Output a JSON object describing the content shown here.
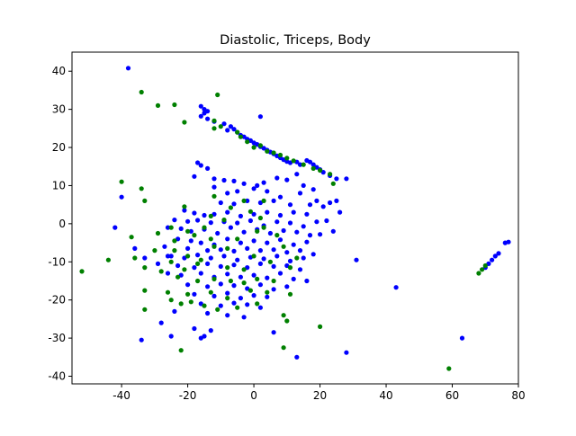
{
  "chart_data": {
    "type": "scatter",
    "title": "Diastolic, Triceps, Body",
    "xlabel": "",
    "ylabel": "",
    "xlim": [
      -55,
      80
    ],
    "ylim": [
      -42,
      45
    ],
    "xticks": [
      -40,
      -20,
      0,
      20,
      40,
      60,
      80
    ],
    "yticks": [
      -40,
      -30,
      -20,
      -10,
      0,
      10,
      20,
      30,
      40
    ],
    "grid": false,
    "legend": "none",
    "series": [
      {
        "color": "#0000ff",
        "points": [
          [
            -38,
            40.8
          ],
          [
            -16,
            30.8
          ],
          [
            -15,
            30
          ],
          [
            -14,
            29.5
          ],
          [
            -15,
            29
          ],
          [
            -16,
            28.2
          ],
          [
            -14,
            27.5
          ],
          [
            -12,
            26.8
          ],
          [
            -9,
            26.2
          ],
          [
            -7,
            25.5
          ],
          [
            -6,
            24.8
          ],
          [
            -8,
            24.5
          ],
          [
            -5,
            24
          ],
          [
            -4,
            23.2
          ],
          [
            -3,
            22.8
          ],
          [
            -2,
            22.2
          ],
          [
            -1,
            21.8
          ],
          [
            0,
            21.2
          ],
          [
            1,
            20.8
          ],
          [
            2,
            20.2
          ],
          [
            3,
            19.8
          ],
          [
            4,
            19.3
          ],
          [
            5,
            18.8
          ],
          [
            6,
            18.3
          ],
          [
            7,
            17.8
          ],
          [
            8,
            17.3
          ],
          [
            9,
            16.8
          ],
          [
            10,
            16.3
          ],
          [
            11,
            16
          ],
          [
            13,
            16.2
          ],
          [
            14,
            15.5
          ],
          [
            16,
            16.6
          ],
          [
            17,
            16.2
          ],
          [
            18,
            15.5
          ],
          [
            19,
            14.8
          ],
          [
            20,
            14.2
          ],
          [
            21,
            13.5
          ],
          [
            23,
            12.6
          ],
          [
            25,
            11.8
          ],
          [
            28,
            11.8
          ],
          [
            2,
            28.1
          ],
          [
            -17,
            16
          ],
          [
            -16,
            15.3
          ],
          [
            -14,
            14.5
          ],
          [
            -18,
            12.4
          ],
          [
            -12,
            11.8
          ],
          [
            -9,
            11.4
          ],
          [
            -6,
            11.2
          ],
          [
            -3,
            10.5
          ],
          [
            1,
            10
          ],
          [
            3,
            10.8
          ],
          [
            7,
            12
          ],
          [
            10,
            11.5
          ],
          [
            13,
            13
          ],
          [
            15,
            10
          ],
          [
            18,
            9
          ],
          [
            -12,
            9.6
          ],
          [
            -8,
            8
          ],
          [
            -5,
            8.5
          ],
          [
            0,
            9.2
          ],
          [
            4,
            8.5
          ],
          [
            8,
            7
          ],
          [
            14,
            8
          ],
          [
            19,
            6
          ],
          [
            23,
            5.5
          ],
          [
            25,
            6
          ],
          [
            -10,
            5.5
          ],
          [
            -6,
            5.2
          ],
          [
            -2,
            6
          ],
          [
            2,
            5.5
          ],
          [
            6,
            6
          ],
          [
            11,
            5
          ],
          [
            17,
            5
          ],
          [
            21,
            4.5
          ],
          [
            26,
            3
          ],
          [
            -21,
            3.5
          ],
          [
            -18,
            2.8
          ],
          [
            -15,
            2.2
          ],
          [
            -12,
            2.5
          ],
          [
            -8,
            3
          ],
          [
            -4,
            2
          ],
          [
            0,
            2.5
          ],
          [
            4,
            3
          ],
          [
            8,
            2.2
          ],
          [
            12,
            3
          ],
          [
            16,
            2.5
          ],
          [
            19,
            0.5
          ],
          [
            22,
            0.8
          ],
          [
            -24,
            1
          ],
          [
            -20,
            0.6
          ],
          [
            -17,
            0.9
          ],
          [
            -13,
            0.3
          ],
          [
            -9,
            0.5
          ],
          [
            -5,
            0.2
          ],
          [
            -1,
            0.8
          ],
          [
            3,
            -0.5
          ],
          [
            7,
            0.5
          ],
          [
            11,
            0.2
          ],
          [
            15,
            -0.7
          ],
          [
            -26,
            -1
          ],
          [
            -22,
            -1.3
          ],
          [
            -19,
            -2
          ],
          [
            -15,
            -1.5
          ],
          [
            -11,
            -2.5
          ],
          [
            -7,
            -1
          ],
          [
            -3,
            -2.2
          ],
          [
            1,
            -1.5
          ],
          [
            5,
            -2.5
          ],
          [
            9,
            -1.8
          ],
          [
            13,
            -2.2
          ],
          [
            17,
            -3
          ],
          [
            20,
            -2.8
          ],
          [
            24,
            -2
          ],
          [
            -23,
            -4
          ],
          [
            -19,
            -4.5
          ],
          [
            -16,
            -5
          ],
          [
            -12,
            -5.5
          ],
          [
            -8,
            -4
          ],
          [
            -4,
            -5
          ],
          [
            0,
            -4.5
          ],
          [
            4,
            -5
          ],
          [
            8,
            -4.2
          ],
          [
            12,
            -5.5
          ],
          [
            16,
            -4.8
          ],
          [
            -27,
            -6
          ],
          [
            -20,
            -6.5
          ],
          [
            -14,
            -7
          ],
          [
            -10,
            -6.8
          ],
          [
            -6,
            -7.2
          ],
          [
            -2,
            -6.5
          ],
          [
            2,
            -7
          ],
          [
            6,
            -6.8
          ],
          [
            10,
            -7.5
          ],
          [
            14,
            -7
          ],
          [
            18,
            -8
          ],
          [
            -25,
            -8.5
          ],
          [
            -21,
            -9
          ],
          [
            -17,
            -8.2
          ],
          [
            -13,
            -9
          ],
          [
            -9,
            -8.5
          ],
          [
            -5,
            -9.5
          ],
          [
            -1,
            -8.8
          ],
          [
            3,
            -9.2
          ],
          [
            7,
            -8.5
          ],
          [
            11,
            -9.8
          ],
          [
            15,
            -9
          ],
          [
            -29,
            -10.5
          ],
          [
            -23,
            -11
          ],
          [
            -18,
            -11.5
          ],
          [
            -14,
            -10.5
          ],
          [
            -10,
            -11.2
          ],
          [
            -6,
            -10.8
          ],
          [
            -2,
            -11.5
          ],
          [
            2,
            -10.5
          ],
          [
            6,
            -11.2
          ],
          [
            10,
            -11
          ],
          [
            14,
            -12
          ],
          [
            -26,
            -13
          ],
          [
            -22,
            -13.5
          ],
          [
            -16,
            -13
          ],
          [
            -12,
            -14
          ],
          [
            -8,
            -13.2
          ],
          [
            -4,
            -14
          ],
          [
            0,
            -13.5
          ],
          [
            4,
            -14.2
          ],
          [
            8,
            -13
          ],
          [
            12,
            -14.5
          ],
          [
            16,
            -15
          ],
          [
            -20,
            -16
          ],
          [
            -14,
            -16.5
          ],
          [
            -10,
            -15.8
          ],
          [
            -6,
            -16.2
          ],
          [
            -2,
            -17
          ],
          [
            2,
            -16
          ],
          [
            6,
            -17.2
          ],
          [
            10,
            -16.5
          ],
          [
            -18,
            -18.5
          ],
          [
            -12,
            -19
          ],
          [
            -8,
            -18.2
          ],
          [
            -4,
            -19.5
          ],
          [
            0,
            -18.8
          ],
          [
            4,
            -19.2
          ],
          [
            -16,
            -21
          ],
          [
            -10,
            -21.5
          ],
          [
            -6,
            -20.8
          ],
          [
            -2,
            -21.2
          ],
          [
            2,
            -22
          ],
          [
            -14,
            -23.5
          ],
          [
            -8,
            -24
          ],
          [
            -3,
            -24.5
          ],
          [
            -24,
            -23
          ],
          [
            -28,
            -26
          ],
          [
            -18,
            -27.5
          ],
          [
            -13,
            -28
          ],
          [
            -25,
            -29.5
          ],
          [
            -16,
            -30
          ],
          [
            -15,
            -29.5
          ],
          [
            -34,
            -30.5
          ],
          [
            6,
            -28.5
          ],
          [
            13,
            -35
          ],
          [
            28,
            -33.8
          ],
          [
            -40,
            7
          ],
          [
            -42,
            -1
          ],
          [
            -36,
            -6.5
          ],
          [
            -33,
            -9
          ],
          [
            -26,
            -8.5
          ],
          [
            31,
            -9.5
          ],
          [
            43,
            -16.7
          ],
          [
            63,
            -30
          ],
          [
            70,
            -11.5
          ],
          [
            71,
            -10.5
          ],
          [
            72,
            -9.5
          ],
          [
            73,
            -8.5
          ],
          [
            74,
            -7.8
          ],
          [
            76,
            -5
          ],
          [
            77,
            -4.8
          ]
        ]
      },
      {
        "color": "#008000",
        "points": [
          [
            -34,
            34.5
          ],
          [
            -24,
            31.2
          ],
          [
            -29,
            31
          ],
          [
            -21,
            26.6
          ],
          [
            -11,
            33.8
          ],
          [
            -12,
            27
          ],
          [
            -12,
            25
          ],
          [
            -10,
            25.5
          ],
          [
            -5,
            24
          ],
          [
            -4,
            22.8
          ],
          [
            -2,
            21.5
          ],
          [
            0,
            20
          ],
          [
            2,
            20.5
          ],
          [
            4,
            19
          ],
          [
            6,
            18.6
          ],
          [
            8,
            18
          ],
          [
            10,
            17.2
          ],
          [
            12,
            16.5
          ],
          [
            15,
            15.5
          ],
          [
            18,
            14.5
          ],
          [
            20,
            14
          ],
          [
            23,
            13
          ],
          [
            24,
            10.5
          ],
          [
            -40,
            11
          ],
          [
            -34,
            9.2
          ],
          [
            -33,
            6
          ],
          [
            -12,
            7.2
          ],
          [
            -3,
            6
          ],
          [
            3,
            6
          ],
          [
            -21,
            4.5
          ],
          [
            -7,
            4.2
          ],
          [
            -1,
            3.2
          ],
          [
            2,
            1.5
          ],
          [
            -13,
            2
          ],
          [
            -9,
            1
          ],
          [
            3,
            -1
          ],
          [
            -25,
            -1
          ],
          [
            -20,
            -2
          ],
          [
            -15,
            -1
          ],
          [
            1,
            -2
          ],
          [
            -29,
            -2.5
          ],
          [
            -24,
            -4.5
          ],
          [
            -18,
            -3
          ],
          [
            -13,
            -4
          ],
          [
            -5,
            -4
          ],
          [
            7,
            -3
          ],
          [
            -12,
            -6
          ],
          [
            -8,
            -6.5
          ],
          [
            9,
            -6
          ],
          [
            -20,
            -8.5
          ],
          [
            -16,
            -9.5
          ],
          [
            0,
            -8.5
          ],
          [
            -24,
            -7
          ],
          [
            -30,
            -7
          ],
          [
            13,
            -9
          ],
          [
            -37,
            -3.5
          ],
          [
            -36,
            -9
          ],
          [
            -44,
            -9.5
          ],
          [
            -52,
            -12.5
          ],
          [
            -33,
            -11.5
          ],
          [
            -25,
            -10
          ],
          [
            -21,
            -12
          ],
          [
            -17,
            -10.5
          ],
          [
            5,
            -10
          ],
          [
            -8,
            -11.5
          ],
          [
            -3,
            -12
          ],
          [
            11,
            -11.5
          ],
          [
            -28,
            -12.5
          ],
          [
            -23,
            -14
          ],
          [
            -17,
            -15
          ],
          [
            -12,
            -14.5
          ],
          [
            -7,
            -15
          ],
          [
            -3,
            -15.5
          ],
          [
            1,
            -14.5
          ],
          [
            6,
            -15
          ],
          [
            -33,
            -17.5
          ],
          [
            -26,
            -18
          ],
          [
            -20,
            -18.5
          ],
          [
            -13,
            -18
          ],
          [
            -8,
            -19.5
          ],
          [
            -1,
            -17.5
          ],
          [
            4,
            -18
          ],
          [
            11,
            -18.5
          ],
          [
            -25,
            -20
          ],
          [
            -22,
            -21
          ],
          [
            -19,
            -20.5
          ],
          [
            -15,
            -21.5
          ],
          [
            -11,
            -22.5
          ],
          [
            -5,
            -22
          ],
          [
            1,
            -21
          ],
          [
            -33,
            -22.5
          ],
          [
            -22,
            -33.2
          ],
          [
            9,
            -24
          ],
          [
            10,
            -25.5
          ],
          [
            20,
            -27
          ],
          [
            9,
            -32.5
          ],
          [
            59,
            -38
          ],
          [
            68,
            -13
          ],
          [
            69,
            -12
          ],
          [
            70,
            -11
          ]
        ]
      }
    ]
  }
}
